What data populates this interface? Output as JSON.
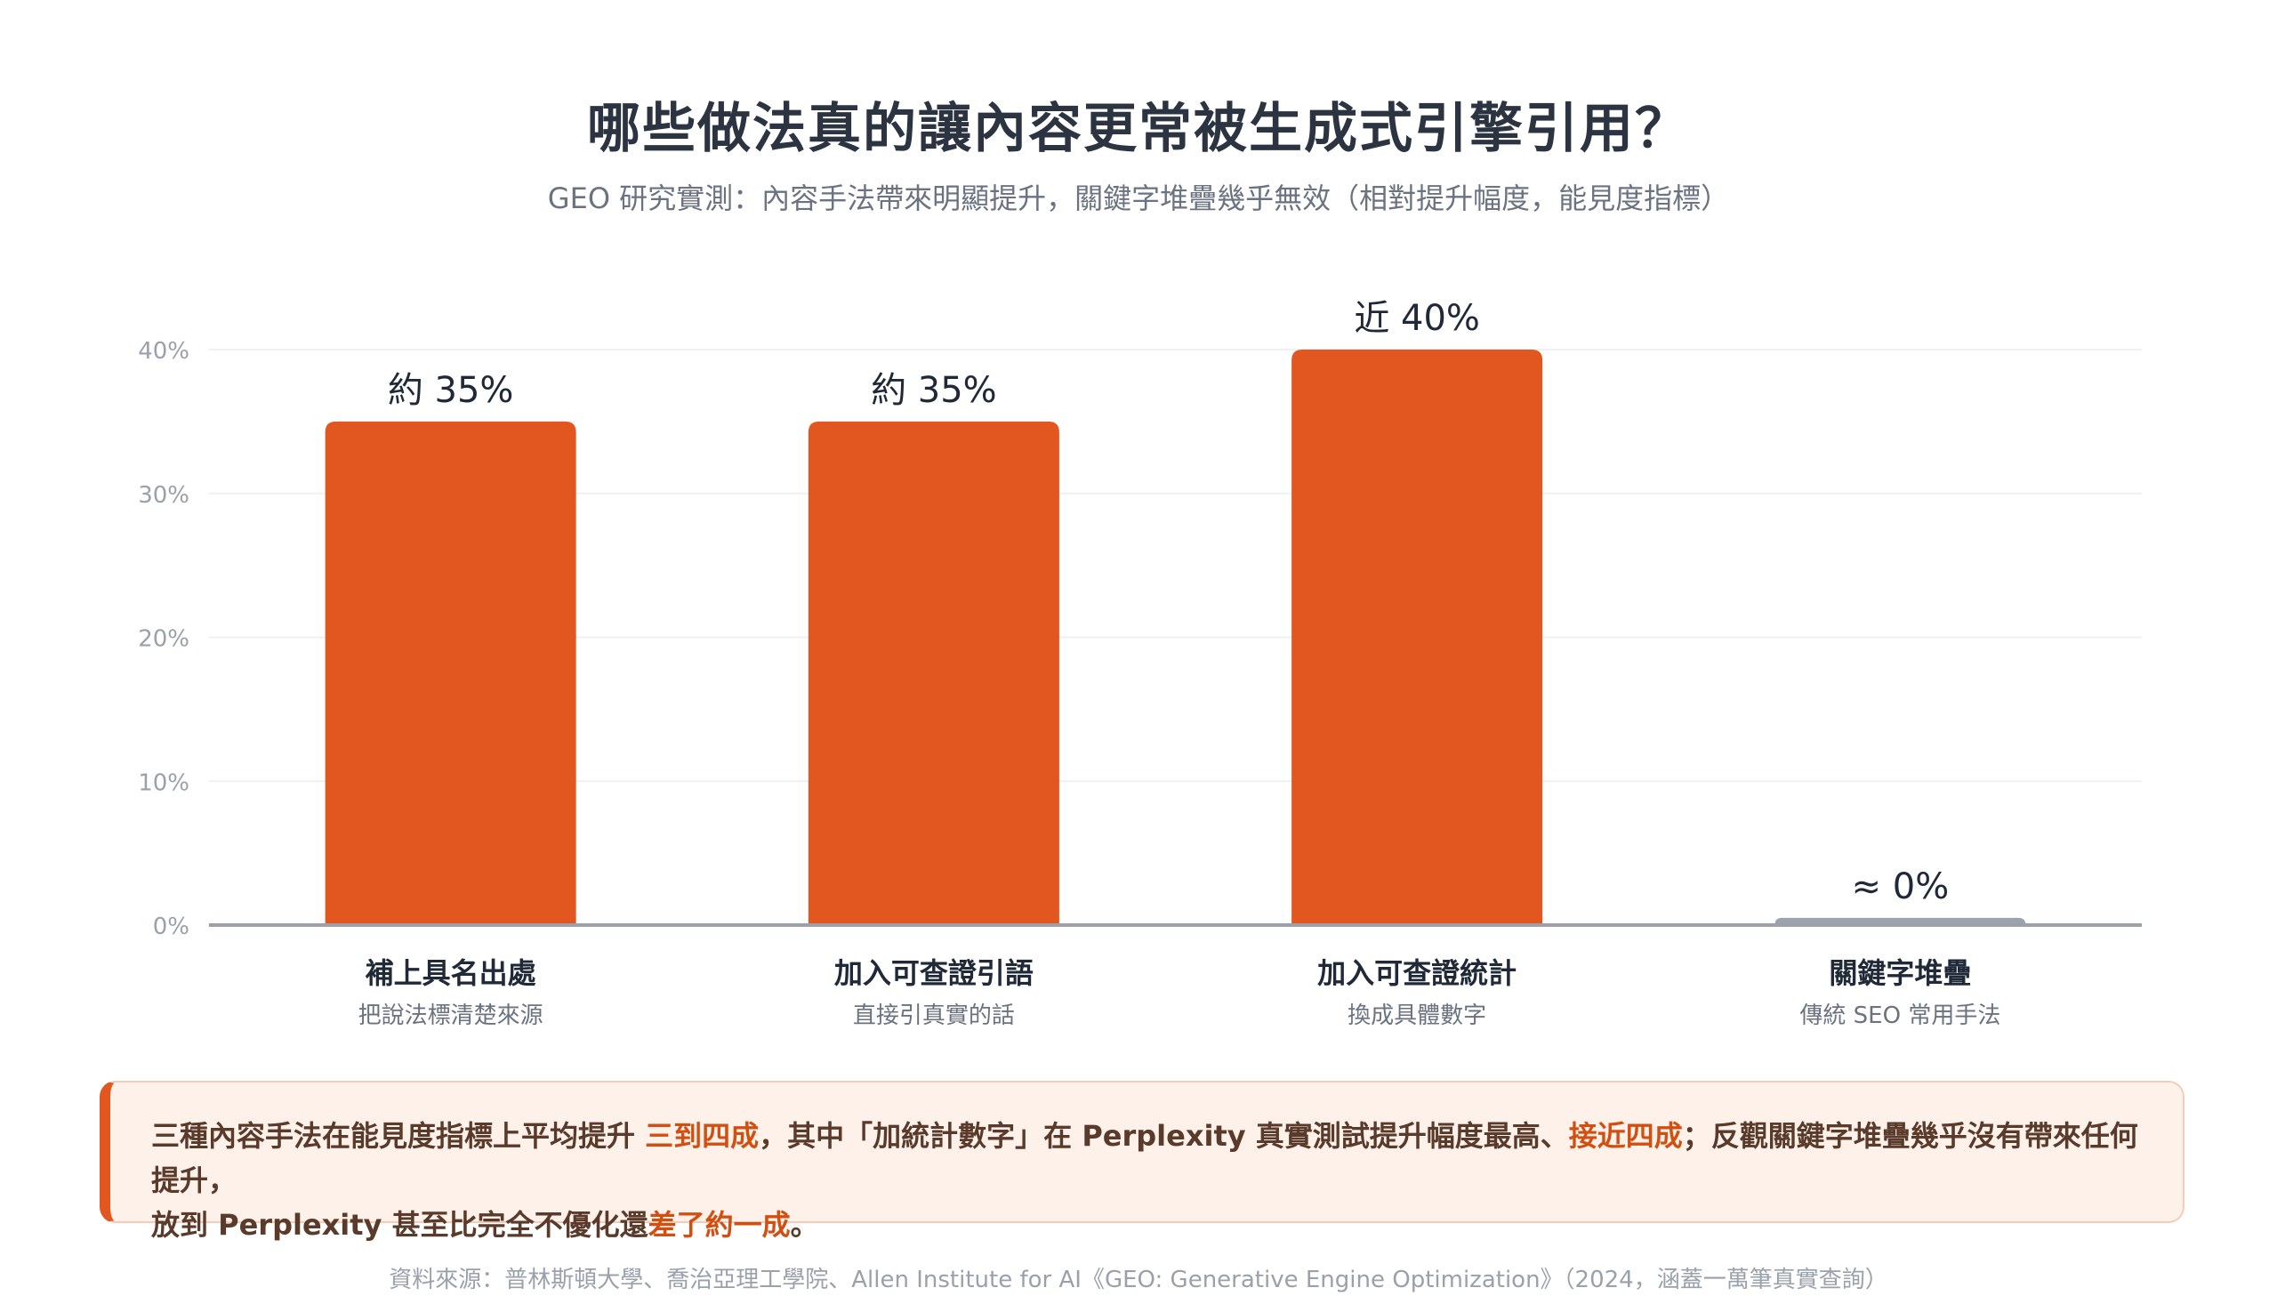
{
  "title": "哪些做法真的讓內容更常被生成式引擎引用？",
  "subtitle": "GEO 研究實測：內容手法帶來明顯提升，關鍵字堆疊幾乎無效（相對提升幅度，能見度指標）",
  "colors": {
    "accent": "#e2561f",
    "muted": "#9ba3ae",
    "axis": "#9aa1ab",
    "grid": "#eef0f3"
  },
  "chart_data": {
    "type": "bar",
    "categories": [
      "補上具名出處",
      "加入可查證引語",
      "加入可查證統計",
      "關鍵字堆疊"
    ],
    "sublabels": [
      "把說法標清楚來源",
      "直接引真實的話",
      "換成具體數字",
      "傳統 SEO 常用手法"
    ],
    "values": [
      35,
      35,
      40,
      0.5
    ],
    "value_labels": [
      "約 35%",
      "約 35%",
      "近 40%",
      "≈ 0%"
    ],
    "bar_colors": [
      "#e2561f",
      "#e2561f",
      "#e2561f",
      "#9ba3ae"
    ],
    "yticks": [
      "0%",
      "10%",
      "20%",
      "30%",
      "40%"
    ],
    "ytick_values": [
      0,
      10,
      20,
      30,
      40
    ],
    "ylim": [
      0,
      40
    ],
    "grid": true,
    "legend": false
  },
  "callout": {
    "p1": "三種內容手法在能見度指標上平均提升",
    "h1": "三到四成",
    "p2": "，其中「加統計數字」在 Perplexity 真實測試提升幅度最高、",
    "h2": "接近四成",
    "p3": "；反觀關鍵字堆疊幾乎沒有帶來任何提升，",
    "p4": "放到 Perplexity 甚至比完全不優化還",
    "h3": "差了約一成",
    "p5": "。"
  },
  "source": "資料來源：普林斯頓大學、喬治亞理工學院、Allen Institute for AI《GEO: Generative Engine Optimization》（2024，涵蓋一萬筆真實查詢）"
}
